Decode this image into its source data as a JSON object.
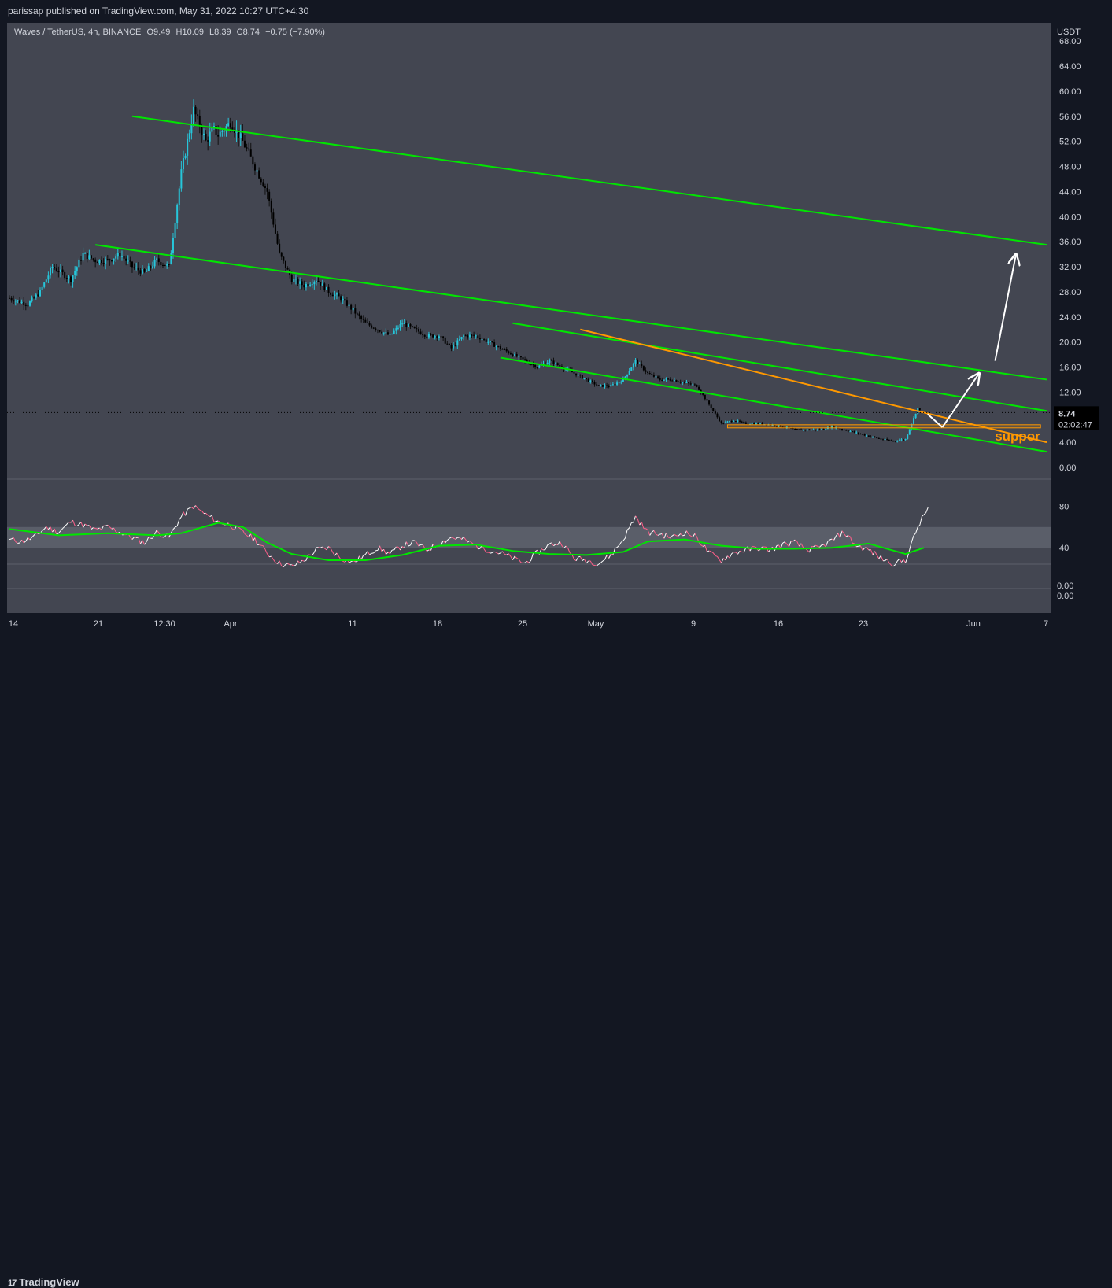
{
  "header": {
    "published": "parissap published on TradingView.com, May 31, 2022 10:27 UTC+4:30"
  },
  "legend": {
    "symbol": "Waves / TetherUS, 4h, BINANCE",
    "o_label": "O",
    "o_value": "9.49",
    "h_label": "H",
    "h_value": "10.09",
    "l_label": "L",
    "l_value": "8.39",
    "c_label": "C",
    "c_value": "8.74",
    "change": "−0.75 (−7.90%)"
  },
  "price_scale": {
    "currency": "USDT",
    "last_price": "8.74",
    "countdown": "02:02:47"
  },
  "annotation": {
    "support_label": "suppor"
  },
  "footer": {
    "brand": "TradingView"
  },
  "colors": {
    "background": "#434651",
    "panel": "#131722",
    "channel": "#00e600",
    "trendline": "#ff9800",
    "arrow": "#ffffff",
    "candle_up": "#26c6da",
    "candle_down": "#000000",
    "rsi_line": "#ffffff",
    "rsi_down": "#ff5f8a",
    "rsi_ma": "#00e600",
    "rsi_band": "#5d606b"
  },
  "chart_data": [
    {
      "type": "candlestick",
      "symbol": "Waves / TetherUS",
      "interval": "4h",
      "exchange": "BINANCE",
      "yunit": "USDT",
      "ylim": [
        0,
        66
      ],
      "yticks": [
        "68.00",
        "64.00",
        "60.00",
        "56.00",
        "52.00",
        "48.00",
        "44.00",
        "40.00",
        "36.00",
        "32.00",
        "28.00",
        "24.00",
        "20.00",
        "16.00",
        "12.00",
        "8.00",
        "4.00",
        "0.00"
      ],
      "xticks": [
        "14",
        "21",
        "12:30",
        "Apr",
        "11",
        "18",
        "25",
        "May",
        "9",
        "16",
        "23",
        "Jun",
        "7"
      ],
      "xrange_days": [
        14,
        98.5
      ],
      "price_path": [
        [
          14,
          27
        ],
        [
          15.5,
          26
        ],
        [
          16.5,
          28
        ],
        [
          17.5,
          32
        ],
        [
          19,
          30
        ],
        [
          20,
          34
        ],
        [
          21,
          33
        ],
        [
          22,
          33
        ],
        [
          23,
          34
        ],
        [
          24,
          32
        ],
        [
          25,
          31
        ],
        [
          26,
          33
        ],
        [
          27,
          32
        ],
        [
          28,
          47
        ],
        [
          29,
          57
        ],
        [
          30,
          52
        ],
        [
          30.6,
          54
        ],
        [
          31,
          53
        ],
        [
          32,
          55
        ],
        [
          33,
          52
        ],
        [
          34,
          48
        ],
        [
          35,
          44
        ],
        [
          36,
          34
        ],
        [
          37,
          30
        ],
        [
          38,
          29
        ],
        [
          39,
          30
        ],
        [
          40,
          28
        ],
        [
          41,
          27
        ],
        [
          42,
          25
        ],
        [
          43,
          23
        ],
        [
          44,
          22
        ],
        [
          45,
          21
        ],
        [
          46,
          23
        ],
        [
          47,
          22
        ],
        [
          48,
          21
        ],
        [
          49,
          21
        ],
        [
          50,
          19
        ],
        [
          51,
          21
        ],
        [
          52,
          21
        ],
        [
          53,
          20
        ],
        [
          54,
          19
        ],
        [
          55,
          18
        ],
        [
          56,
          17
        ],
        [
          57,
          16
        ],
        [
          58,
          17
        ],
        [
          59,
          16
        ],
        [
          60,
          15
        ],
        [
          61,
          14
        ],
        [
          62,
          13
        ],
        [
          63,
          13
        ],
        [
          64,
          14
        ],
        [
          65,
          17
        ],
        [
          66,
          15
        ],
        [
          67,
          14
        ],
        [
          68,
          14
        ],
        [
          69,
          13.5
        ],
        [
          70,
          13
        ],
        [
          71,
          10
        ],
        [
          72,
          7
        ],
        [
          73,
          7.5
        ],
        [
          74,
          7
        ],
        [
          75,
          7
        ],
        [
          76,
          6.8
        ],
        [
          77,
          6.5
        ],
        [
          78,
          6
        ],
        [
          79,
          6
        ],
        [
          80,
          6
        ],
        [
          81,
          6.5
        ],
        [
          82,
          6
        ],
        [
          83,
          5.5
        ],
        [
          84,
          5
        ],
        [
          85,
          4.5
        ],
        [
          86,
          4.2
        ],
        [
          87,
          4.5
        ],
        [
          88,
          9.5
        ],
        [
          88.3,
          8.74
        ]
      ],
      "lines": {
        "channel_outer_top": [
          [
            24,
            56
          ],
          [
            98.5,
            35.5
          ]
        ],
        "channel_upper": [
          [
            21,
            35.5
          ],
          [
            98.5,
            14
          ]
        ],
        "channel_inner_top": [
          [
            55,
            23
          ],
          [
            98.5,
            9
          ]
        ],
        "channel_lower": [
          [
            54,
            17.5
          ],
          [
            98.5,
            2.5
          ]
        ],
        "orange_trend": [
          [
            60.5,
            22
          ],
          [
            98.5,
            4
          ]
        ],
        "support_box": [
          [
            72.5,
            6.8
          ],
          [
            98,
            6.3
          ]
        ]
      },
      "arrows": [
        [
          [
            88.8,
            8.5
          ],
          [
            90,
            6.4
          ]
        ],
        [
          [
            90,
            6.4
          ],
          [
            93,
            15
          ]
        ],
        [
          [
            94.3,
            17
          ],
          [
            96,
            34
          ]
        ]
      ],
      "last_value": 8.74
    },
    {
      "type": "line",
      "indicator": "RSI",
      "ylim": [
        0,
        100
      ],
      "yticks": [
        "80",
        "40",
        "0.00",
        "0.00"
      ],
      "band": [
        40,
        60
      ],
      "rsi_path": [
        [
          14,
          48
        ],
        [
          15,
          46
        ],
        [
          16,
          50
        ],
        [
          17,
          60
        ],
        [
          18,
          55
        ],
        [
          19,
          65
        ],
        [
          20,
          62
        ],
        [
          21,
          57
        ],
        [
          22,
          60
        ],
        [
          23,
          55
        ],
        [
          24,
          50
        ],
        [
          25,
          45
        ],
        [
          26,
          55
        ],
        [
          27,
          50
        ],
        [
          28,
          70
        ],
        [
          29,
          80
        ],
        [
          30,
          72
        ],
        [
          31,
          65
        ],
        [
          32,
          62
        ],
        [
          33,
          55
        ],
        [
          34,
          48
        ],
        [
          35,
          35
        ],
        [
          36,
          25
        ],
        [
          37,
          22
        ],
        [
          38,
          28
        ],
        [
          39,
          38
        ],
        [
          40,
          40
        ],
        [
          41,
          30
        ],
        [
          42,
          26
        ],
        [
          43,
          33
        ],
        [
          44,
          40
        ],
        [
          45,
          34
        ],
        [
          46,
          42
        ],
        [
          47,
          45
        ],
        [
          48,
          38
        ],
        [
          49,
          44
        ],
        [
          50,
          50
        ],
        [
          51,
          48
        ],
        [
          52,
          42
        ],
        [
          53,
          38
        ],
        [
          54,
          35
        ],
        [
          55,
          30
        ],
        [
          56,
          25
        ],
        [
          57,
          35
        ],
        [
          58,
          43
        ],
        [
          59,
          45
        ],
        [
          60,
          30
        ],
        [
          61,
          28
        ],
        [
          62,
          25
        ],
        [
          63,
          33
        ],
        [
          64,
          48
        ],
        [
          65,
          70
        ],
        [
          66,
          55
        ],
        [
          67,
          53
        ],
        [
          68,
          50
        ],
        [
          69,
          55
        ],
        [
          70,
          50
        ],
        [
          71,
          35
        ],
        [
          72,
          28
        ],
        [
          73,
          35
        ],
        [
          74,
          38
        ],
        [
          75,
          40
        ],
        [
          76,
          38
        ],
        [
          77,
          43
        ],
        [
          78,
          45
        ],
        [
          79,
          38
        ],
        [
          80,
          40
        ],
        [
          81,
          47
        ],
        [
          82,
          55
        ],
        [
          83,
          42
        ],
        [
          84,
          38
        ],
        [
          85,
          30
        ],
        [
          86,
          25
        ],
        [
          87,
          28
        ],
        [
          88,
          60
        ],
        [
          89,
          82
        ]
      ],
      "ma_path": [
        [
          14,
          58
        ],
        [
          18,
          52
        ],
        [
          22,
          54
        ],
        [
          26,
          52
        ],
        [
          28,
          54
        ],
        [
          31,
          64
        ],
        [
          33,
          60
        ],
        [
          35,
          45
        ],
        [
          37,
          34
        ],
        [
          40,
          28
        ],
        [
          43,
          28
        ],
        [
          46,
          33
        ],
        [
          49,
          42
        ],
        [
          52,
          43
        ],
        [
          55,
          37
        ],
        [
          58,
          34
        ],
        [
          61,
          33
        ],
        [
          64,
          36
        ],
        [
          66,
          46
        ],
        [
          69,
          48
        ],
        [
          72,
          42
        ],
        [
          75,
          39
        ],
        [
          78,
          39
        ],
        [
          81,
          40
        ],
        [
          84,
          44
        ],
        [
          87,
          34
        ],
        [
          88.5,
          40
        ]
      ]
    }
  ]
}
